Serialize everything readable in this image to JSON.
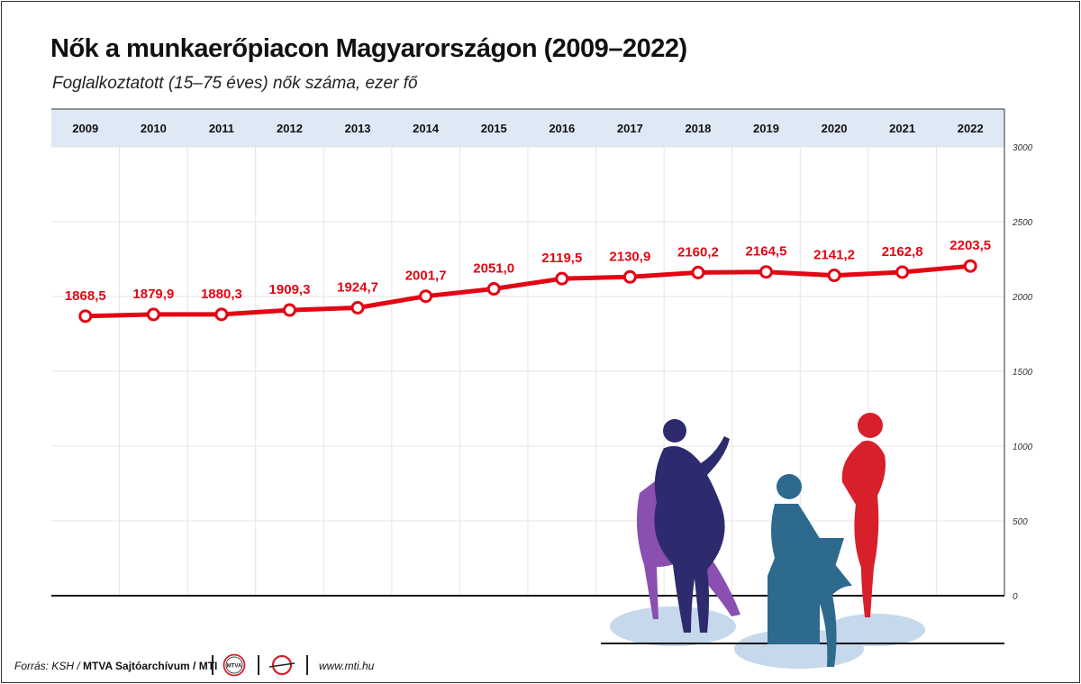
{
  "title": "Nők a munkaerőpiacon Magyarországon (2009–2022)",
  "subtitle": "Foglalkoztatott (15–75 éves) nők száma, ezer fő",
  "chart_data": {
    "type": "line",
    "categories": [
      "2009",
      "2010",
      "2011",
      "2012",
      "2013",
      "2014",
      "2015",
      "2016",
      "2017",
      "2018",
      "2019",
      "2020",
      "2021",
      "2022"
    ],
    "values": [
      1868.5,
      1879.9,
      1880.3,
      1909.3,
      1924.7,
      2001.7,
      2051.0,
      2119.5,
      2130.9,
      2160.2,
      2164.5,
      2141.2,
      2162.8,
      2203.5
    ],
    "value_labels": [
      "1868,5",
      "1879,9",
      "1880,3",
      "1909,3",
      "1924,7",
      "2001,7",
      "2051,0",
      "2119,5",
      "2130,9",
      "2160,2",
      "2164,5",
      "2141,2",
      "2162,8",
      "2203,5"
    ],
    "ylim": [
      0,
      3000
    ],
    "yticks": [
      "0",
      "500",
      "1000",
      "1500",
      "2000",
      "2500",
      "3000"
    ],
    "ytick_values": [
      0,
      500,
      1000,
      1500,
      2000,
      2500,
      3000
    ],
    "y_axis_position": "right",
    "x_axis_position": "top",
    "grid": true,
    "line_color": "#e30613",
    "header_band_color": "#dfe8f5"
  },
  "footer": {
    "source_label": "Forrás: KSH /",
    "source_bold": "MTVA Sajtóarchívum / MTI",
    "mtva_logo_text": "MTVA",
    "website": "www.mti.hu"
  },
  "illustration": {
    "description_icon": "women-silhouettes-illustration",
    "colors": [
      "#2e2a6e",
      "#8a4fb0",
      "#2d6a8e",
      "#d7202a",
      "#c5d8ec"
    ]
  }
}
